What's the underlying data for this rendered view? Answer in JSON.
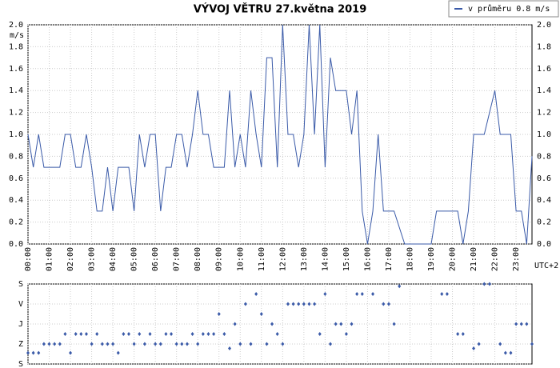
{
  "chart_data": [
    {
      "type": "line",
      "title": "VÝVOJ VĚTRU  27.května 2019",
      "y_label": "m/s",
      "x_note": "UTC+2",
      "x": [
        0,
        0.25,
        0.5,
        0.75,
        1.5,
        1.75,
        2,
        2.25,
        2.5,
        2.75,
        3,
        3.25,
        3.5,
        3.75,
        4,
        4.25,
        4.75,
        5,
        5.25,
        5.5,
        5.75,
        6,
        6.25,
        6.5,
        6.75,
        7,
        7.25,
        7.5,
        7.75,
        8,
        8.25,
        8.5,
        8.75,
        9.25,
        9.5,
        9.75,
        10,
        10.25,
        10.5,
        10.75,
        11,
        11.25,
        11.5,
        11.75,
        12,
        12.25,
        12.5,
        12.75,
        13,
        13.25,
        13.5,
        13.75,
        14,
        14.25,
        14.5,
        15,
        15.25,
        15.5,
        15.75,
        16,
        16.25,
        16.5,
        16.75,
        17.25,
        17.75,
        19,
        19.25,
        20.25,
        20.5,
        20.75,
        21,
        21.5,
        22,
        22.25,
        22.75,
        23,
        23.25,
        23.5,
        23.75
      ],
      "series": [
        {
          "name": "v průměru 0.8 m/s",
          "color": "#3a5aa8",
          "values": [
            1.0,
            0.7,
            1.0,
            0.7,
            0.7,
            1.0,
            1.0,
            0.7,
            0.7,
            1.0,
            0.7,
            0.3,
            0.3,
            0.7,
            0.3,
            0.7,
            0.7,
            0.3,
            1.0,
            0.7,
            1.0,
            1.0,
            0.3,
            0.7,
            0.7,
            1.0,
            1.0,
            0.7,
            1.0,
            1.4,
            1.0,
            1.0,
            0.7,
            0.7,
            1.4,
            0.7,
            1.0,
            0.7,
            1.4,
            1.0,
            0.7,
            1.7,
            1.7,
            0.7,
            2.0,
            1.0,
            1.0,
            0.7,
            1.0,
            2.0,
            1.0,
            2.0,
            0.7,
            1.7,
            1.4,
            1.4,
            1.0,
            1.4,
            0.3,
            0.0,
            0.3,
            1.0,
            0.3,
            0.3,
            0.0,
            0.0,
            0.3,
            0.3,
            0.0,
            0.3,
            1.0,
            1.0,
            1.4,
            1.0,
            1.0,
            0.3,
            0.3,
            0.0,
            0.8
          ]
        }
      ],
      "xlim": [
        0,
        23.75
      ],
      "xticks": [
        {
          "value": 0,
          "label": "00:00"
        },
        {
          "value": 1,
          "label": "01:00"
        },
        {
          "value": 2,
          "label": "02:00"
        },
        {
          "value": 3,
          "label": "03:00"
        },
        {
          "value": 4,
          "label": "04:00"
        },
        {
          "value": 5,
          "label": "05:00"
        },
        {
          "value": 6,
          "label": "06:00"
        },
        {
          "value": 7,
          "label": "07:00"
        },
        {
          "value": 8,
          "label": "08:00"
        },
        {
          "value": 9,
          "label": "09:00"
        },
        {
          "value": 10,
          "label": "10:00"
        },
        {
          "value": 11,
          "label": "11:00"
        },
        {
          "value": 12,
          "label": "12:00"
        },
        {
          "value": 13,
          "label": "13:00"
        },
        {
          "value": 14,
          "label": "14:00"
        },
        {
          "value": 15,
          "label": "15:00"
        },
        {
          "value": 16,
          "label": "16:00"
        },
        {
          "value": 17,
          "label": "17:00"
        },
        {
          "value": 18,
          "label": "18:00"
        },
        {
          "value": 19,
          "label": "19:00"
        },
        {
          "value": 20,
          "label": "20:00"
        },
        {
          "value": 21,
          "label": "21:00"
        },
        {
          "value": 22,
          "label": "22:00"
        },
        {
          "value": 23,
          "label": "23:00"
        }
      ],
      "ylim": [
        0,
        2
      ],
      "yticks": [
        {
          "value": 0,
          "label": "0.0"
        },
        {
          "value": 0.2,
          "label": "0.2"
        },
        {
          "value": 0.4,
          "label": "0.4"
        },
        {
          "value": 0.6,
          "label": "0.6"
        },
        {
          "value": 0.8,
          "label": "0.8"
        },
        {
          "value": 1,
          "label": "1.0"
        },
        {
          "value": 1.2,
          "label": "1.2"
        },
        {
          "value": 1.4,
          "label": "1.4"
        },
        {
          "value": 1.6,
          "label": "1.6"
        },
        {
          "value": 1.8,
          "label": "1.8"
        },
        {
          "value": 2,
          "label": "2.0"
        }
      ],
      "grid": true,
      "legend": "top-right"
    },
    {
      "type": "scatter",
      "x": [
        0,
        0.25,
        0.5,
        0.75,
        1,
        1.25,
        1.5,
        1.75,
        2,
        2.25,
        2.5,
        2.75,
        3,
        3.25,
        3.5,
        3.75,
        4,
        4.25,
        4.5,
        4.75,
        5,
        5.25,
        5.5,
        5.75,
        6,
        6.25,
        6.5,
        6.75,
        7,
        7.25,
        7.5,
        7.75,
        8,
        8.25,
        8.5,
        8.75,
        9,
        9.25,
        9.5,
        9.75,
        10,
        10.25,
        10.5,
        10.75,
        11,
        11.25,
        11.5,
        11.75,
        12,
        12.25,
        12.5,
        12.75,
        13,
        13.25,
        13.5,
        13.75,
        14,
        14.25,
        14.5,
        14.75,
        15,
        15.25,
        15.5,
        15.75,
        16.25,
        16.75,
        17,
        17.25,
        17.5,
        19.5,
        19.75,
        20.25,
        20.5,
        21,
        21.25,
        21.5,
        21.75,
        22.25,
        22.5,
        22.75,
        23,
        23.25,
        23.5,
        23.75
      ],
      "values": [
        310,
        310,
        310,
        270,
        270,
        270,
        270,
        225,
        310,
        225,
        225,
        225,
        270,
        225,
        270,
        270,
        270,
        310,
        225,
        225,
        270,
        225,
        270,
        225,
        270,
        270,
        225,
        225,
        270,
        270,
        270,
        225,
        270,
        225,
        225,
        225,
        135,
        225,
        290,
        180,
        270,
        90,
        270,
        45,
        135,
        270,
        180,
        225,
        270,
        90,
        90,
        90,
        90,
        90,
        90,
        225,
        45,
        270,
        180,
        180,
        225,
        180,
        45,
        45,
        45,
        90,
        90,
        180,
        10,
        45,
        45,
        225,
        225,
        290,
        270,
        0,
        0,
        270,
        310,
        310,
        180,
        180,
        180,
        270
      ],
      "color": "#3a5aa8",
      "xlim": [
        0,
        23.75
      ],
      "ylim": [
        360,
        0
      ],
      "yticks": [
        {
          "value": 0,
          "label": "S"
        },
        {
          "value": 90,
          "label": "V"
        },
        {
          "value": 180,
          "label": "J"
        },
        {
          "value": 270,
          "label": "Z"
        },
        {
          "value": 360,
          "label": "S"
        }
      ],
      "grid": true
    }
  ]
}
